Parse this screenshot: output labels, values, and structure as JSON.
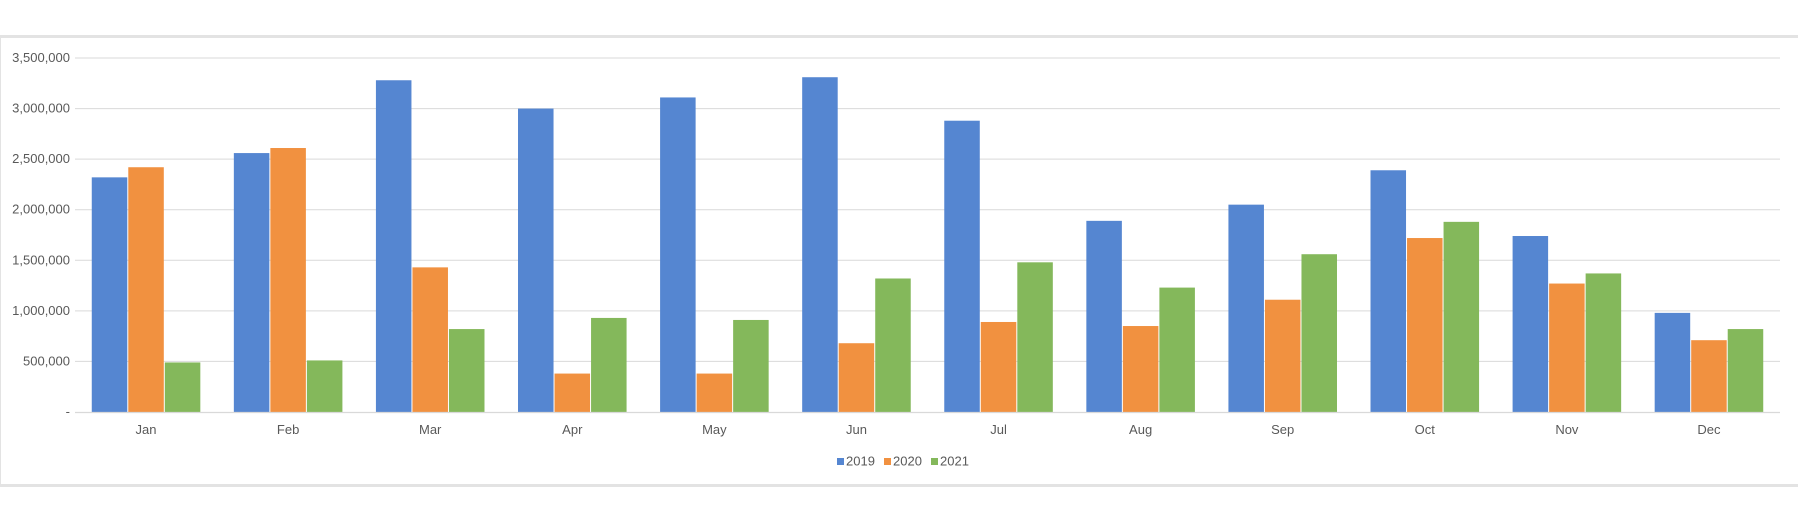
{
  "chart_data": {
    "type": "bar",
    "title": "",
    "xlabel": "",
    "ylabel": "",
    "ylim": [
      0,
      3500000
    ],
    "yticks": [
      0,
      500000,
      1000000,
      1500000,
      2000000,
      2500000,
      3000000,
      3500000
    ],
    "ytick_labels": [
      "-",
      "500,000",
      "1,000,000",
      "1,500,000",
      "2,000,000",
      "2,500,000",
      "3,000,000",
      "3,500,000"
    ],
    "grid": true,
    "legend_position": "bottom",
    "categories": [
      "Jan",
      "Feb",
      "Mar",
      "Apr",
      "May",
      "Jun",
      "Jul",
      "Aug",
      "Sep",
      "Oct",
      "Nov",
      "Dec"
    ],
    "series": [
      {
        "name": "2019",
        "color": "#5586d1",
        "values": [
          2320000,
          2560000,
          3280000,
          3000000,
          3110000,
          3310000,
          2880000,
          1890000,
          2050000,
          2390000,
          1740000,
          980000
        ]
      },
      {
        "name": "2020",
        "color": "#f19140",
        "values": [
          2420000,
          2610000,
          1430000,
          380000,
          380000,
          680000,
          890000,
          850000,
          1110000,
          1720000,
          1270000,
          710000
        ]
      },
      {
        "name": "2021",
        "color": "#84b85b",
        "values": [
          490000,
          510000,
          820000,
          930000,
          910000,
          1320000,
          1480000,
          1230000,
          1560000,
          1880000,
          1370000,
          820000
        ]
      }
    ]
  }
}
